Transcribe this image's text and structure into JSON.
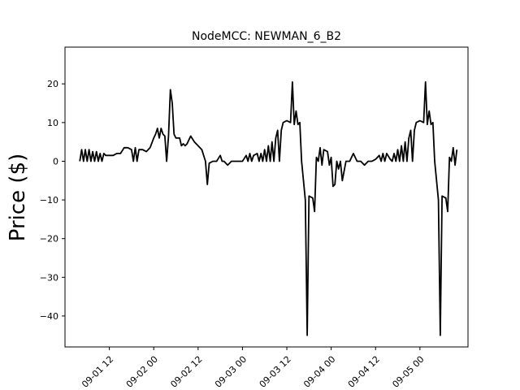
{
  "chart_data": {
    "type": "line",
    "title": "NodeMCC: NEWMAN_6_B2",
    "xlabel": "",
    "ylabel": "Price ($)",
    "x_unit": "datetime",
    "xlim": [
      "2024-09-01 00:00",
      "2024-09-05 13:00"
    ],
    "ylim": [
      -48,
      29.5
    ],
    "yticks": [
      -40,
      -30,
      -20,
      -10,
      0,
      10,
      20
    ],
    "xticks": [
      {
        "t": "2024-09-01 12:00",
        "label": "09-01 12"
      },
      {
        "t": "2024-09-02 00:00",
        "label": "09-02 00"
      },
      {
        "t": "2024-09-02 12:00",
        "label": "09-02 12"
      },
      {
        "t": "2024-09-03 00:00",
        "label": "09-03 00"
      },
      {
        "t": "2024-09-03 12:00",
        "label": "09-03 12"
      },
      {
        "t": "2024-09-04 00:00",
        "label": "09-04 00"
      },
      {
        "t": "2024-09-04 12:00",
        "label": "09-04 12"
      },
      {
        "t": "2024-09-05 00:00",
        "label": "09-05 00"
      }
    ],
    "grid": false,
    "series": [
      {
        "color": "#000000",
        "points": [
          [
            "2024-09-01 04:00",
            0
          ],
          [
            "2024-09-01 04:30",
            3
          ],
          [
            "2024-09-01 05:00",
            0
          ],
          [
            "2024-09-01 05:30",
            3
          ],
          [
            "2024-09-01 06:00",
            0
          ],
          [
            "2024-09-01 06:30",
            3
          ],
          [
            "2024-09-01 07:00",
            0
          ],
          [
            "2024-09-01 07:30",
            2.5
          ],
          [
            "2024-09-01 08:00",
            0
          ],
          [
            "2024-09-01 08:30",
            2.5
          ],
          [
            "2024-09-01 09:00",
            0
          ],
          [
            "2024-09-01 09:30",
            2
          ],
          [
            "2024-09-01 10:00",
            0
          ],
          [
            "2024-09-01 10:30",
            2
          ],
          [
            "2024-09-01 11:00",
            1.5
          ],
          [
            "2024-09-01 12:00",
            1.5
          ],
          [
            "2024-09-01 13:00",
            1.5
          ],
          [
            "2024-09-01 14:00",
            2
          ],
          [
            "2024-09-01 15:00",
            2
          ],
          [
            "2024-09-01 16:00",
            3.5
          ],
          [
            "2024-09-01 17:00",
            3.5
          ],
          [
            "2024-09-01 18:00",
            3
          ],
          [
            "2024-09-01 18:30",
            0
          ],
          [
            "2024-09-01 19:00",
            3.5
          ],
          [
            "2024-09-01 19:30",
            0
          ],
          [
            "2024-09-01 20:00",
            3
          ],
          [
            "2024-09-01 21:00",
            3
          ],
          [
            "2024-09-01 22:00",
            2.5
          ],
          [
            "2024-09-01 23:00",
            3.5
          ],
          [
            "2024-09-02 00:00",
            6
          ],
          [
            "2024-09-02 00:30",
            7
          ],
          [
            "2024-09-02 01:00",
            8.5
          ],
          [
            "2024-09-02 01:30",
            6
          ],
          [
            "2024-09-02 02:00",
            8.5
          ],
          [
            "2024-09-02 02:30",
            7
          ],
          [
            "2024-09-02 03:00",
            6.5
          ],
          [
            "2024-09-02 03:30",
            0
          ],
          [
            "2024-09-02 04:00",
            6.5
          ],
          [
            "2024-09-02 04:30",
            18.5
          ],
          [
            "2024-09-02 05:00",
            15
          ],
          [
            "2024-09-02 05:30",
            7
          ],
          [
            "2024-09-02 06:00",
            6
          ],
          [
            "2024-09-02 07:00",
            6
          ],
          [
            "2024-09-02 07:30",
            4
          ],
          [
            "2024-09-02 08:00",
            4.5
          ],
          [
            "2024-09-02 08:30",
            4
          ],
          [
            "2024-09-02 09:00",
            4.5
          ],
          [
            "2024-09-02 10:00",
            6.5
          ],
          [
            "2024-09-02 11:00",
            5
          ],
          [
            "2024-09-02 12:00",
            4
          ],
          [
            "2024-09-02 13:00",
            3
          ],
          [
            "2024-09-02 14:00",
            0
          ],
          [
            "2024-09-02 14:30",
            -6
          ],
          [
            "2024-09-02 15:00",
            -0.5
          ],
          [
            "2024-09-02 16:00",
            0
          ],
          [
            "2024-09-02 17:00",
            0
          ],
          [
            "2024-09-02 18:00",
            1.5
          ],
          [
            "2024-09-02 18:30",
            0
          ],
          [
            "2024-09-02 19:00",
            0
          ],
          [
            "2024-09-02 20:00",
            -1
          ],
          [
            "2024-09-02 21:00",
            0
          ],
          [
            "2024-09-02 22:00",
            0
          ],
          [
            "2024-09-02 23:00",
            0
          ],
          [
            "2024-09-03 00:00",
            0
          ],
          [
            "2024-09-03 01:00",
            1.5
          ],
          [
            "2024-09-03 01:30",
            0
          ],
          [
            "2024-09-03 02:00",
            2
          ],
          [
            "2024-09-03 02:30",
            0
          ],
          [
            "2024-09-03 03:00",
            1.5
          ],
          [
            "2024-09-03 04:00",
            2
          ],
          [
            "2024-09-03 04:30",
            0
          ],
          [
            "2024-09-03 05:00",
            2
          ],
          [
            "2024-09-03 05:30",
            0
          ],
          [
            "2024-09-03 06:00",
            3
          ],
          [
            "2024-09-03 06:30",
            0
          ],
          [
            "2024-09-03 07:00",
            4
          ],
          [
            "2024-09-03 07:30",
            0
          ],
          [
            "2024-09-03 08:00",
            5
          ],
          [
            "2024-09-03 08:30",
            0
          ],
          [
            "2024-09-03 09:00",
            6
          ],
          [
            "2024-09-03 09:30",
            8
          ],
          [
            "2024-09-03 10:00",
            0
          ],
          [
            "2024-09-03 10:30",
            8
          ],
          [
            "2024-09-03 11:00",
            10
          ],
          [
            "2024-09-03 12:00",
            10.5
          ],
          [
            "2024-09-03 13:00",
            10
          ],
          [
            "2024-09-03 13:30",
            20.5
          ],
          [
            "2024-09-03 14:00",
            9.5
          ],
          [
            "2024-09-03 14:30",
            13
          ],
          [
            "2024-09-03 15:00",
            9.5
          ],
          [
            "2024-09-03 15:30",
            10
          ],
          [
            "2024-09-03 16:00",
            0
          ],
          [
            "2024-09-03 17:00",
            -10
          ],
          [
            "2024-09-03 17:30",
            -45
          ],
          [
            "2024-09-03 18:00",
            -9
          ],
          [
            "2024-09-03 19:00",
            -9.5
          ],
          [
            "2024-09-03 19:30",
            -13
          ],
          [
            "2024-09-03 20:00",
            1
          ],
          [
            "2024-09-03 20:30",
            0
          ],
          [
            "2024-09-03 21:00",
            3.5
          ],
          [
            "2024-09-03 21:30",
            -1
          ],
          [
            "2024-09-03 22:00",
            3
          ],
          [
            "2024-09-03 23:00",
            2.5
          ],
          [
            "2024-09-03 23:30",
            -1
          ],
          [
            "2024-09-04 00:00",
            1
          ],
          [
            "2024-09-04 00:30",
            -6.5
          ],
          [
            "2024-09-04 01:00",
            -6
          ],
          [
            "2024-09-04 01:30",
            0
          ],
          [
            "2024-09-04 02:00",
            -2
          ],
          [
            "2024-09-04 02:30",
            0
          ],
          [
            "2024-09-04 03:00",
            -5
          ],
          [
            "2024-09-04 04:00",
            0
          ],
          [
            "2024-09-04 05:00",
            0
          ],
          [
            "2024-09-04 06:00",
            2
          ],
          [
            "2024-09-04 07:00",
            0
          ],
          [
            "2024-09-04 08:00",
            0
          ],
          [
            "2024-09-04 09:00",
            -1
          ],
          [
            "2024-09-04 10:00",
            0
          ],
          [
            "2024-09-04 11:00",
            0
          ],
          [
            "2024-09-04 12:00",
            0.5
          ],
          [
            "2024-09-04 13:00",
            1.5
          ],
          [
            "2024-09-04 13:30",
            0
          ],
          [
            "2024-09-04 14:00",
            2
          ],
          [
            "2024-09-04 14:30",
            0
          ],
          [
            "2024-09-04 15:00",
            2
          ],
          [
            "2024-09-04 16:00",
            0.5
          ],
          [
            "2024-09-04 16:30",
            0
          ],
          [
            "2024-09-04 17:00",
            2
          ],
          [
            "2024-09-04 17:30",
            0
          ],
          [
            "2024-09-04 18:00",
            3
          ],
          [
            "2024-09-04 18:30",
            0
          ],
          [
            "2024-09-04 19:00",
            4
          ],
          [
            "2024-09-04 19:30",
            0
          ],
          [
            "2024-09-04 20:00",
            5
          ],
          [
            "2024-09-04 20:30",
            0
          ],
          [
            "2024-09-04 21:00",
            6
          ],
          [
            "2024-09-04 21:30",
            8
          ],
          [
            "2024-09-04 22:00",
            0
          ],
          [
            "2024-09-04 22:30",
            8
          ],
          [
            "2024-09-04 23:00",
            10
          ],
          [
            "2024-09-05 00:00",
            10.5
          ],
          [
            "2024-09-05 01:00",
            10
          ],
          [
            "2024-09-05 01:30",
            20.5
          ],
          [
            "2024-09-05 02:00",
            9.5
          ],
          [
            "2024-09-05 02:30",
            13
          ],
          [
            "2024-09-05 03:00",
            9.5
          ],
          [
            "2024-09-05 03:30",
            10
          ],
          [
            "2024-09-05 04:00",
            0
          ],
          [
            "2024-09-05 05:00",
            -10
          ],
          [
            "2024-09-05 05:30",
            -45
          ],
          [
            "2024-09-05 06:00",
            -9
          ],
          [
            "2024-09-05 07:00",
            -9.5
          ],
          [
            "2024-09-05 07:30",
            -13
          ],
          [
            "2024-09-05 08:00",
            1
          ],
          [
            "2024-09-05 08:30",
            0
          ],
          [
            "2024-09-05 09:00",
            3.5
          ],
          [
            "2024-09-05 09:30",
            -1
          ],
          [
            "2024-09-05 10:00",
            3
          ]
        ]
      }
    ]
  }
}
